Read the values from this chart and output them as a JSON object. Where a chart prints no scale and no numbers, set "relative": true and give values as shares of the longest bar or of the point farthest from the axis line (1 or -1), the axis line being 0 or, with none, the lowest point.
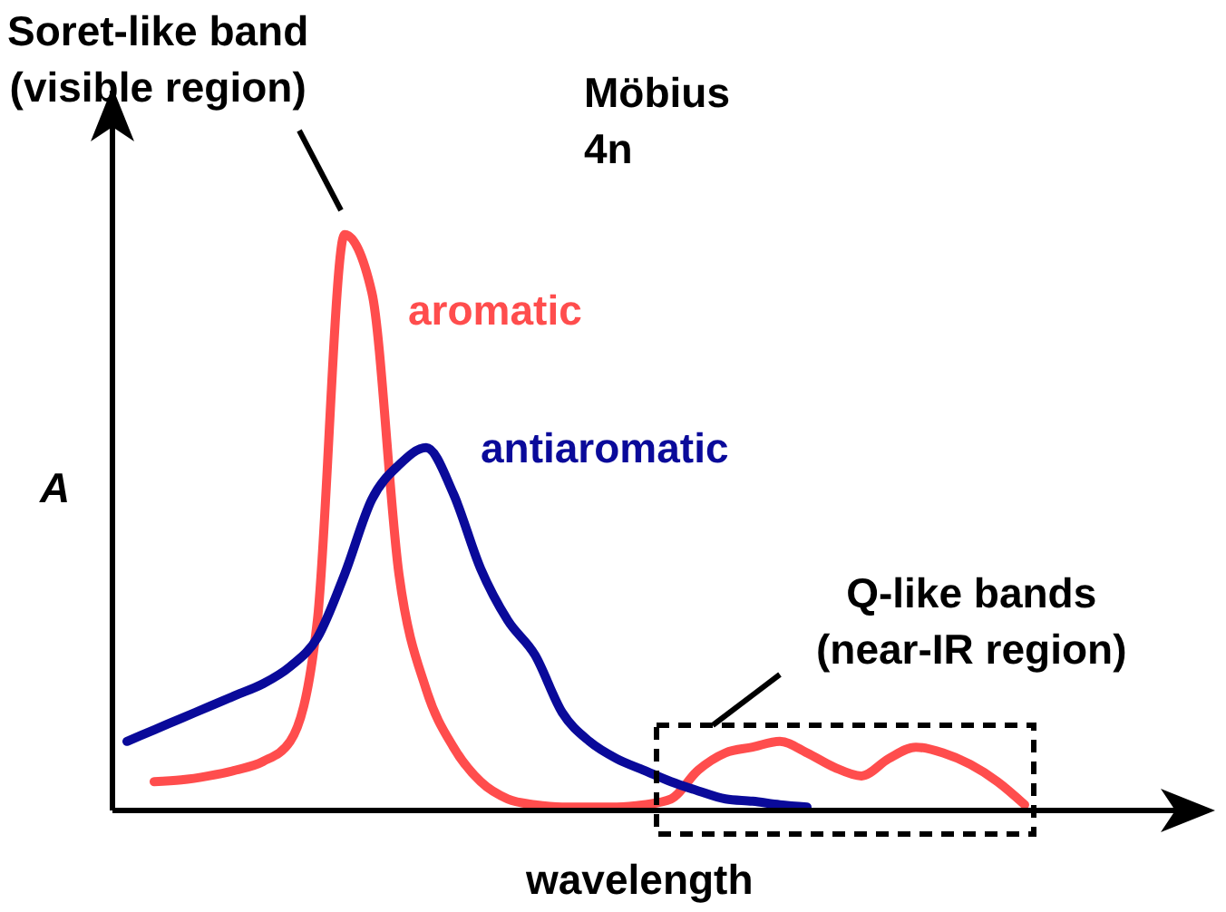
{
  "chart_data": {
    "type": "line",
    "relative": true,
    "xlabel": "wavelength",
    "ylabel": "A",
    "legend": false,
    "marker": "none",
    "line_style": "solid",
    "categories": [
      null,
      null,
      null,
      null,
      null,
      null,
      null,
      null,
      null,
      null,
      null,
      null,
      null,
      null,
      null,
      null,
      null,
      null,
      null,
      null,
      null,
      null,
      null,
      null,
      null,
      null,
      null,
      null,
      null,
      null,
      null,
      null,
      null,
      null
    ],
    "series": [
      {
        "name": "aromatic",
        "color": "#ff4d4d",
        "values": [
          null,
          0.05,
          0.053,
          0.06,
          0.07,
          0.085,
          0.12,
          0.33,
          1,
          0.9,
          0.41,
          0.21,
          0.11,
          0.05,
          0.02,
          0.01,
          0.006,
          0.006,
          0.006,
          0.01,
          0.02,
          0.07,
          0.1,
          0.11,
          0.12,
          0.1,
          0.075,
          0.06,
          0.09,
          0.11,
          0.1,
          0.08,
          0.05,
          0.01
        ]
      },
      {
        "name": "antiaromatic",
        "color": "#0a0a9a",
        "values": [
          0.12,
          0.14,
          0.16,
          0.18,
          0.2,
          0.22,
          0.25,
          0.3,
          0.41,
          0.54,
          0.6,
          0.63,
          0.55,
          0.42,
          0.33,
          0.27,
          0.17,
          0.12,
          0.09,
          0.07,
          0.05,
          0.034,
          0.02,
          0.016,
          0.01,
          0.006,
          null,
          null,
          null,
          null,
          null,
          null,
          null,
          null
        ]
      }
    ],
    "annotations": [
      "Soret-like band\n(visible region)",
      "Möbius\n4n",
      "Q-like bands\n(near-IR region)"
    ]
  }
}
